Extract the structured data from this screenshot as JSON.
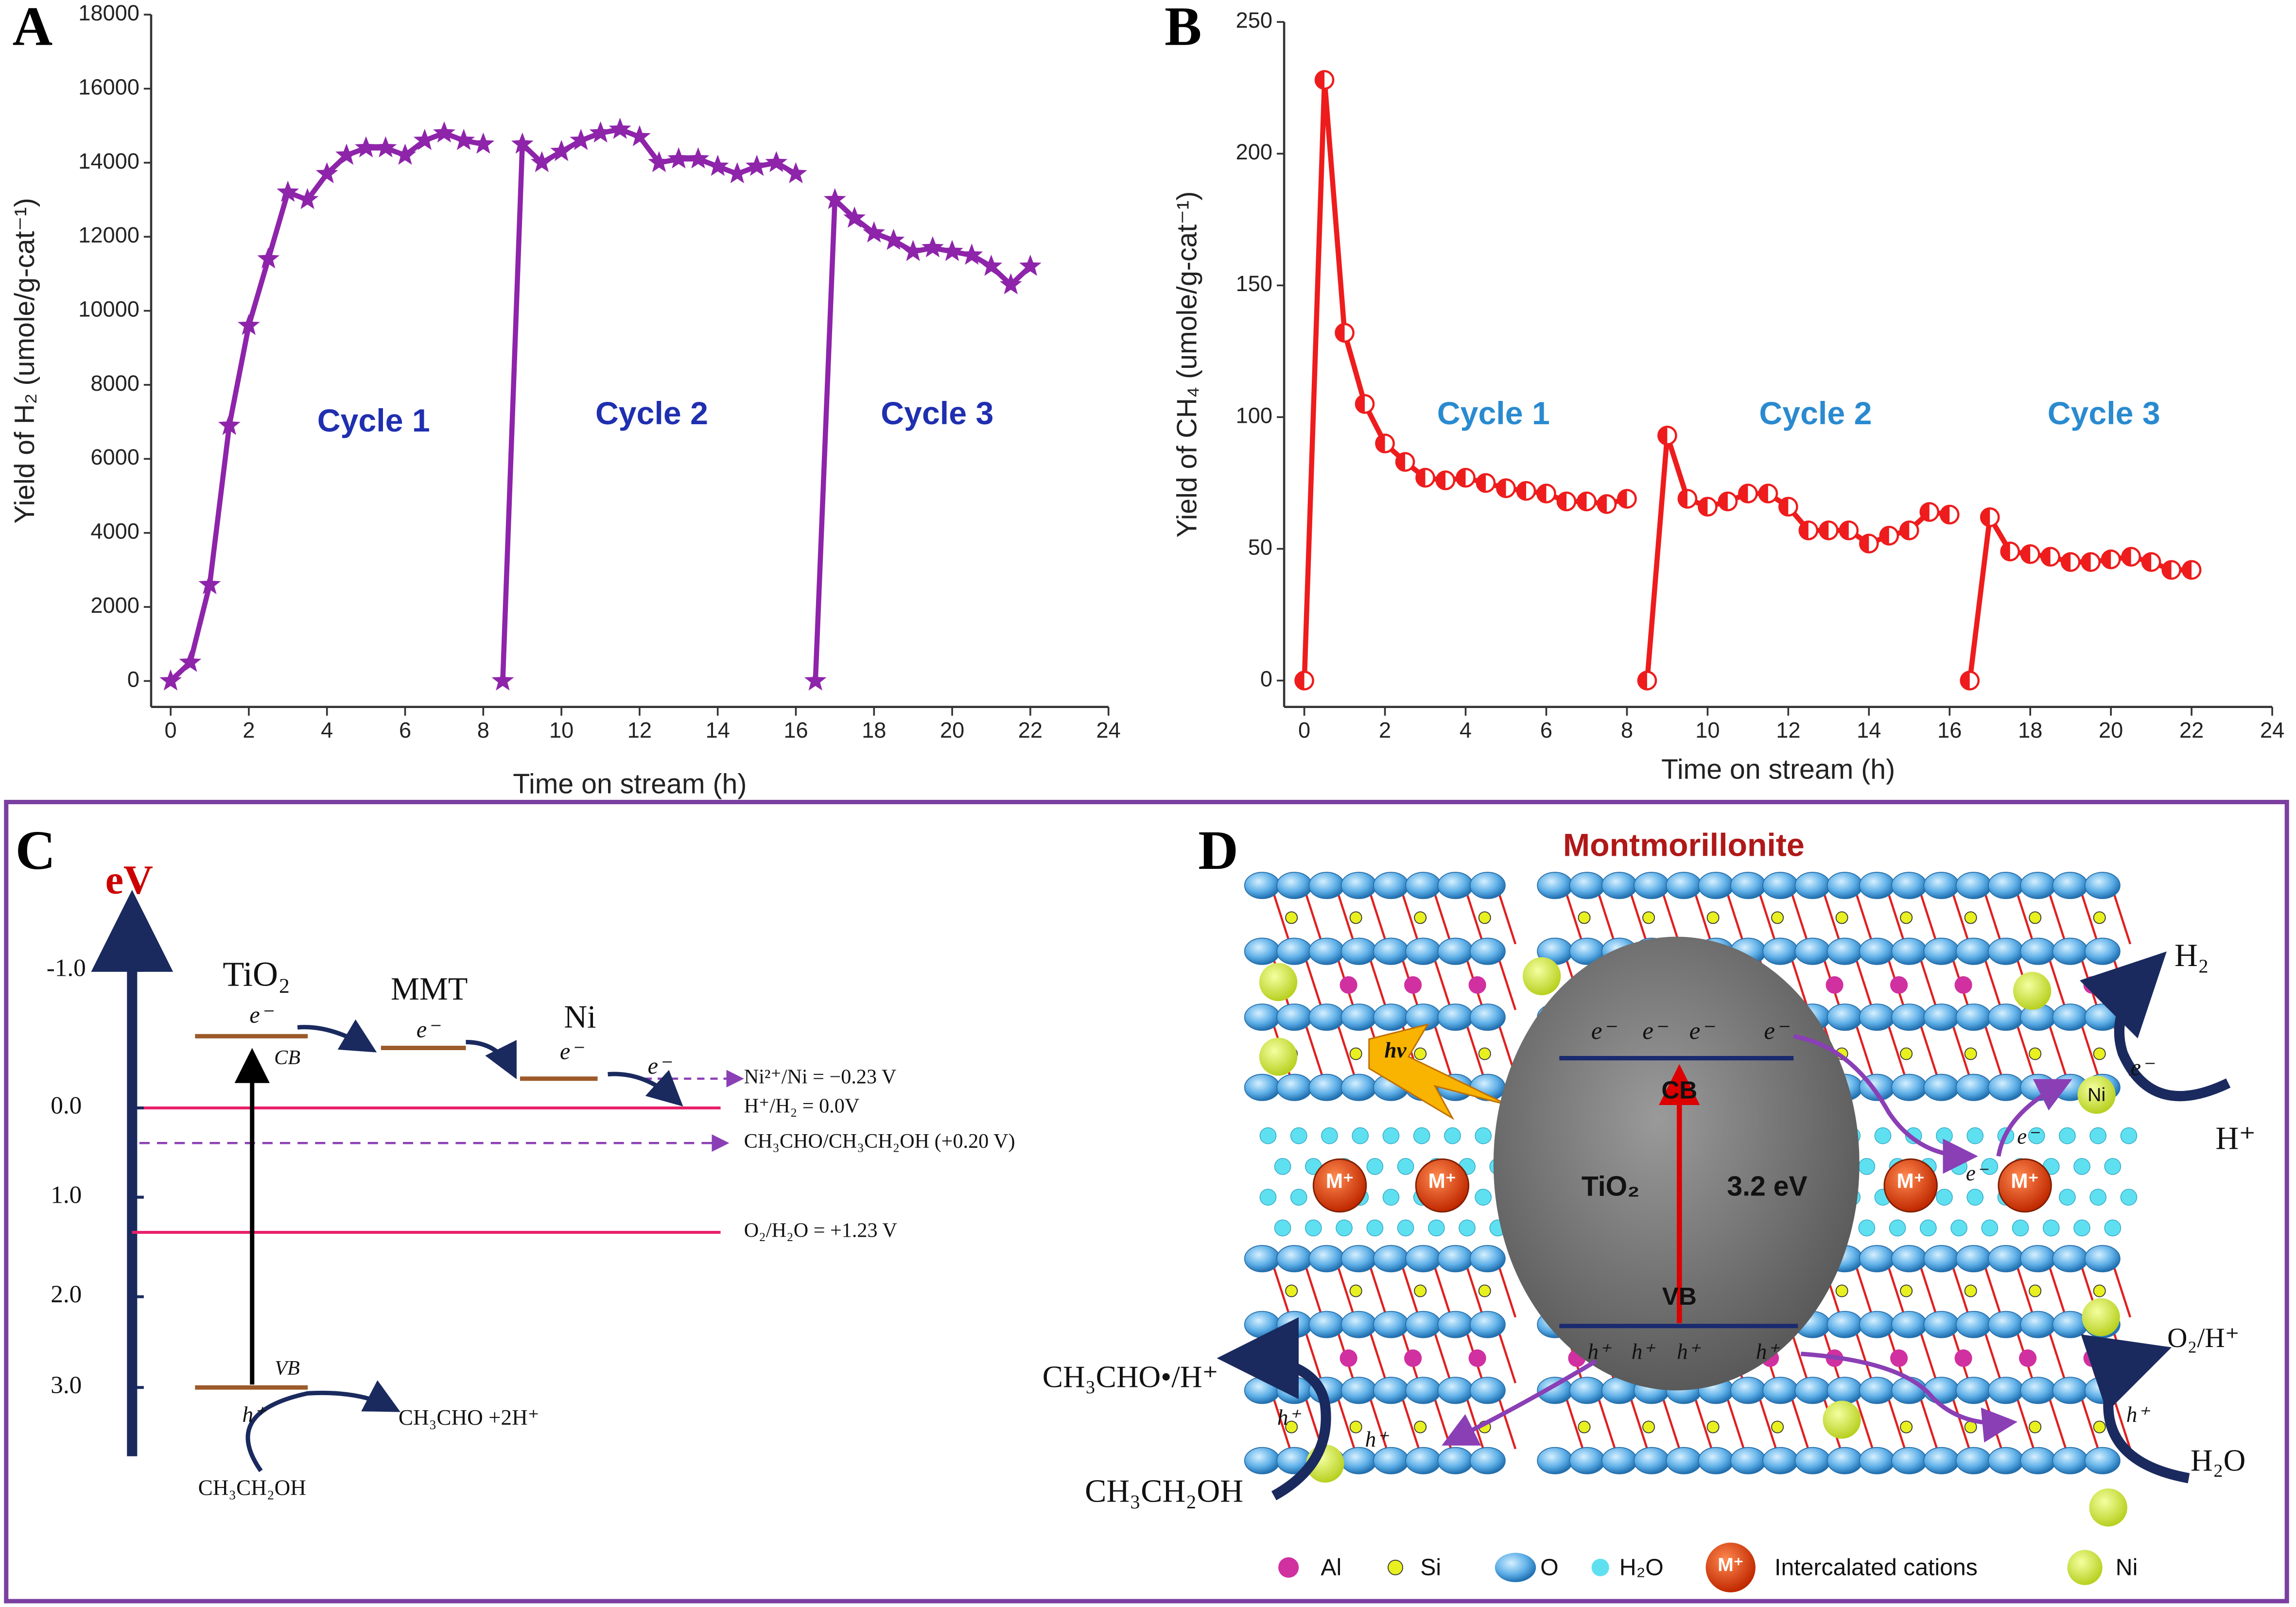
{
  "chart_data": [
    {
      "type": "line",
      "x_label": "Time on stream (h)",
      "y_label": "Yield of H₂ (umole/g-cat⁻¹)",
      "xlim": [
        -0.5,
        24
      ],
      "xticks": [
        0,
        2,
        4,
        6,
        8,
        10,
        12,
        14,
        16,
        18,
        20,
        22,
        24
      ],
      "ylim": [
        -700,
        18000
      ],
      "yticks": [
        0,
        2000,
        4000,
        6000,
        8000,
        10000,
        12000,
        14000,
        16000,
        18000
      ],
      "marker": "star",
      "annotations": [
        "Cycle 1",
        "Cycle 2",
        "Cycle 3"
      ],
      "series": [
        {
          "color": "#8e24aa",
          "x": [
            0,
            0.5,
            1,
            1.5,
            2,
            2.5,
            3,
            3.5,
            4,
            4.5,
            5,
            5.5,
            6,
            6.5,
            7,
            7.5,
            8
          ],
          "values": [
            0,
            500,
            2600,
            6900,
            9600,
            11400,
            13200,
            13000,
            13700,
            14200,
            14400,
            14400,
            14200,
            14600,
            14800,
            14600,
            14500
          ]
        },
        {
          "color": "#8e24aa",
          "x": [
            8.5,
            9,
            9.5,
            10,
            10.5,
            11,
            11.5,
            12,
            12.5,
            13,
            13.5,
            14,
            14.5,
            15,
            15.5,
            16
          ],
          "values": [
            0,
            14500,
            14000,
            14300,
            14600,
            14800,
            14900,
            14700,
            14000,
            14100,
            14100,
            13900,
            13700,
            13900,
            14000,
            13700
          ]
        },
        {
          "color": "#8e24aa",
          "x": [
            16.5,
            17,
            17.5,
            18,
            18.5,
            19,
            19.5,
            20,
            20.5,
            21,
            21.5,
            22
          ],
          "values": [
            0,
            13000,
            12500,
            12100,
            11900,
            11600,
            11700,
            11600,
            11500,
            11200,
            10700,
            11200
          ]
        }
      ]
    },
    {
      "type": "line",
      "x_label": "Time on stream (h)",
      "y_label": "Yield of CH₄ (umole/g-cat⁻¹)",
      "xlim": [
        -0.5,
        24
      ],
      "xticks": [
        0,
        2,
        4,
        6,
        8,
        10,
        12,
        14,
        16,
        18,
        20,
        22,
        24
      ],
      "ylim": [
        -10,
        250
      ],
      "yticks": [
        0,
        50,
        100,
        150,
        200,
        250
      ],
      "marker": "half-circle",
      "annotations": [
        "Cycle 1",
        "Cycle 2",
        "Cycle 3"
      ],
      "series": [
        {
          "color": "#ee1c1c",
          "x": [
            0,
            0.5,
            1,
            1.5,
            2,
            2.5,
            3,
            3.5,
            4,
            4.5,
            5,
            5.5,
            6,
            6.5,
            7,
            7.5,
            8
          ],
          "values": [
            0,
            228,
            132,
            105,
            90,
            83,
            77,
            76,
            77,
            75,
            73,
            72,
            71,
            68,
            68,
            67,
            69
          ]
        },
        {
          "color": "#ee1c1c",
          "x": [
            8.5,
            9,
            9.5,
            10,
            10.5,
            11,
            11.5,
            12,
            12.5,
            13,
            13.5,
            14,
            14.5,
            15,
            15.5,
            16
          ],
          "values": [
            0,
            93,
            69,
            66,
            68,
            71,
            71,
            66,
            57,
            57,
            57,
            52,
            55,
            57,
            64,
            63
          ]
        },
        {
          "color": "#ee1c1c",
          "x": [
            16.5,
            17,
            17.5,
            18,
            18.5,
            19,
            19.5,
            20,
            20.5,
            21,
            21.5,
            22
          ],
          "values": [
            0,
            62,
            49,
            48,
            47,
            45,
            45,
            46,
            47,
            45,
            42,
            42
          ]
        }
      ]
    }
  ],
  "panel_labels": [
    "A",
    "B",
    "C",
    "D"
  ],
  "energy_diagram": {
    "axis_label": "eV",
    "ticks": [
      "-1.0",
      "0.0",
      "1.0",
      "2.0",
      "3.0"
    ],
    "semiconductor": "TiO₂",
    "support": "MMT",
    "cocatalyst": "Ni",
    "electron": "e⁻",
    "cb": "CB",
    "vb": "VB",
    "hole": "h⁺",
    "potentials": [
      "Ni²⁺/Ni = −0.23 V",
      "H⁺/H₂ = 0.0V",
      "CH₃CHO/CH₃CH₂OH (+0.20 V)",
      "O₂/H₂O = +1.23 V"
    ],
    "oxidation_product": "CH₃CHO +2H⁺",
    "reactant": "CH₃CH₂OH"
  },
  "structure_diagram": {
    "title": "Montmorillonite",
    "electron": "e⁻",
    "hole": "h⁺",
    "cb": "CB",
    "vb": "VB",
    "semiconductor": "TiO₂",
    "band_gap": "3.2 eV",
    "light": "hv",
    "cation": "M⁺",
    "ni": "Ni",
    "h2": "H₂",
    "proton": "H⁺",
    "o2_product": "O₂/H⁺",
    "water": "H₂O",
    "ethanol_product": "CH₃CHO•/H⁺",
    "ethanol": "CH₃CH₂OH",
    "legend": [
      "Al",
      "Si",
      "O",
      "H₂O",
      "Intercalated cations",
      "Ni"
    ]
  }
}
